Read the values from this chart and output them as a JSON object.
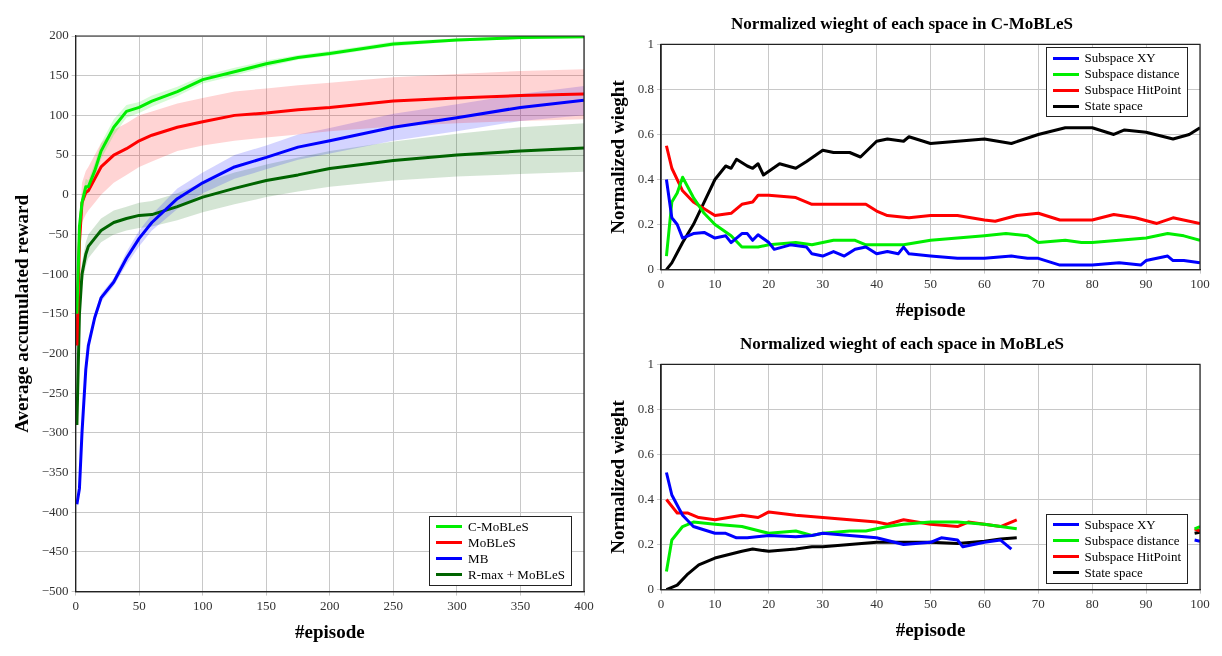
{
  "chart_data": [
    {
      "type": "line",
      "xlabel": "#episode",
      "ylabel": "Average accumulated reward",
      "xlim": [
        0,
        400
      ],
      "ylim": [
        -500,
        200
      ],
      "xticks": [
        0,
        50,
        100,
        150,
        200,
        250,
        300,
        350,
        400
      ],
      "yticks": [
        -500,
        -450,
        -400,
        -350,
        -300,
        -250,
        -200,
        -150,
        -100,
        -50,
        0,
        50,
        100,
        150,
        200
      ],
      "grid": true,
      "legend": "bottom right",
      "marker": "none",
      "line_style": "solid",
      "x": [
        1,
        3,
        5,
        8,
        10,
        15,
        20,
        30,
        40,
        50,
        60,
        80,
        100,
        125,
        150,
        175,
        200,
        250,
        300,
        350,
        400
      ],
      "series": [
        {
          "name": "C-MoBLeS",
          "color": "#00ee00",
          "values": [
            -150,
            -40,
            -10,
            10,
            10,
            30,
            55,
            85,
            105,
            110,
            118,
            130,
            145,
            155,
            165,
            173,
            178,
            190,
            195,
            198,
            199
          ],
          "lower": [
            -165,
            -55,
            -20,
            0,
            2,
            20,
            45,
            75,
            97,
            103,
            111,
            124,
            140,
            150,
            161,
            170,
            175,
            187,
            193,
            196,
            197
          ],
          "upper": [
            -135,
            -25,
            0,
            20,
            18,
            40,
            65,
            95,
            113,
            117,
            125,
            136,
            150,
            160,
            169,
            176,
            181,
            193,
            197,
            200,
            200
          ]
        },
        {
          "name": "MoBLeS",
          "color": "#ff0000",
          "values": [
            -190,
            -60,
            -10,
            3,
            5,
            20,
            35,
            50,
            58,
            68,
            75,
            85,
            92,
            100,
            103,
            107,
            110,
            118,
            122,
            125,
            127
          ],
          "lower": [
            -200,
            -80,
            -35,
            -25,
            -20,
            -10,
            0,
            15,
            25,
            35,
            42,
            55,
            62,
            68,
            72,
            76,
            80,
            86,
            90,
            93,
            95
          ],
          "upper": [
            -180,
            -40,
            15,
            30,
            35,
            50,
            65,
            82,
            90,
            100,
            105,
            115,
            122,
            130,
            134,
            138,
            141,
            148,
            152,
            156,
            158
          ]
        },
        {
          "name": "MB",
          "color": "#0000ff",
          "values": [
            -390,
            -370,
            -300,
            -220,
            -190,
            -155,
            -130,
            -110,
            -80,
            -55,
            -35,
            -5,
            15,
            35,
            47,
            60,
            68,
            85,
            97,
            110,
            119
          ],
          "lower": [
            -395,
            -375,
            -305,
            -225,
            -195,
            -160,
            -135,
            -115,
            -88,
            -65,
            -45,
            -18,
            2,
            20,
            32,
            44,
            52,
            68,
            80,
            93,
            100
          ],
          "upper": [
            -385,
            -365,
            -295,
            -215,
            -185,
            -150,
            -125,
            -105,
            -72,
            -45,
            -25,
            8,
            28,
            50,
            62,
            76,
            84,
            102,
            114,
            127,
            137
          ]
        },
        {
          "name": "R-max + MoBLeS",
          "color": "#006400",
          "values": [
            -290,
            -150,
            -100,
            -75,
            -65,
            -55,
            -45,
            -35,
            -30,
            -26,
            -25,
            -15,
            -3,
            8,
            18,
            25,
            33,
            43,
            50,
            55,
            59
          ],
          "lower": [
            -300,
            -165,
            -115,
            -90,
            -80,
            -70,
            -60,
            -50,
            -45,
            -42,
            -40,
            -32,
            -22,
            -12,
            -3,
            4,
            10,
            18,
            23,
            26,
            29
          ],
          "upper": [
            -280,
            -135,
            -85,
            -60,
            -50,
            -40,
            -30,
            -20,
            -15,
            -10,
            -8,
            2,
            15,
            28,
            38,
            47,
            55,
            67,
            77,
            85,
            90
          ]
        }
      ]
    },
    {
      "type": "line",
      "title": "Normalized wieght of each space in C-MoBLeS",
      "xlabel": "#episode",
      "ylabel": "Normalized wieght",
      "xlim": [
        0,
        100
      ],
      "ylim": [
        0,
        1
      ],
      "xticks": [
        0,
        10,
        20,
        30,
        40,
        50,
        60,
        70,
        80,
        90,
        100
      ],
      "yticks": [
        0,
        0.2,
        0.4,
        0.6,
        0.8,
        1
      ],
      "grid": true,
      "legend": "top right",
      "marker": "none",
      "line_style": "solid",
      "series": [
        {
          "name": "Subspace XY",
          "color": "#0000ff",
          "x": [
            1,
            2,
            3,
            4,
            6,
            8,
            10,
            12,
            13,
            15,
            16,
            17,
            18,
            20,
            21,
            24,
            27,
            28,
            30,
            32,
            34,
            36,
            38,
            40,
            42,
            44,
            45,
            46,
            50,
            55,
            60,
            65,
            68,
            70,
            74,
            80,
            85,
            89,
            90,
            94,
            95,
            97,
            100
          ],
          "values": [
            0.4,
            0.23,
            0.2,
            0.14,
            0.16,
            0.165,
            0.14,
            0.15,
            0.12,
            0.16,
            0.16,
            0.13,
            0.155,
            0.12,
            0.09,
            0.11,
            0.1,
            0.07,
            0.06,
            0.08,
            0.06,
            0.09,
            0.1,
            0.07,
            0.08,
            0.07,
            0.1,
            0.07,
            0.06,
            0.05,
            0.05,
            0.06,
            0.05,
            0.05,
            0.02,
            0.02,
            0.03,
            0.02,
            0.04,
            0.06,
            0.04,
            0.04,
            0.03
          ]
        },
        {
          "name": "Subspace distance",
          "color": "#00ee00",
          "x": [
            1,
            2,
            3,
            4,
            6,
            8,
            10,
            13,
            15,
            18,
            20,
            25,
            28,
            32,
            36,
            38,
            40,
            45,
            50,
            55,
            60,
            64,
            68,
            70,
            75,
            78,
            80,
            85,
            90,
            94,
            97,
            100
          ],
          "values": [
            0.06,
            0.3,
            0.34,
            0.41,
            0.32,
            0.25,
            0.2,
            0.15,
            0.1,
            0.1,
            0.11,
            0.12,
            0.11,
            0.13,
            0.13,
            0.11,
            0.11,
            0.11,
            0.13,
            0.14,
            0.15,
            0.16,
            0.15,
            0.12,
            0.13,
            0.12,
            0.12,
            0.13,
            0.14,
            0.16,
            0.15,
            0.13
          ]
        },
        {
          "name": "Subspace HitPoint",
          "color": "#ff0000",
          "x": [
            1,
            2,
            4,
            6,
            8,
            10,
            13,
            15,
            17,
            18,
            20,
            25,
            28,
            32,
            36,
            38,
            40,
            42,
            46,
            50,
            55,
            60,
            62,
            66,
            70,
            74,
            80,
            84,
            88,
            92,
            95,
            100
          ],
          "values": [
            0.55,
            0.45,
            0.35,
            0.3,
            0.27,
            0.24,
            0.25,
            0.29,
            0.3,
            0.33,
            0.33,
            0.32,
            0.29,
            0.29,
            0.29,
            0.29,
            0.26,
            0.24,
            0.23,
            0.24,
            0.24,
            0.22,
            0.215,
            0.24,
            0.25,
            0.22,
            0.22,
            0.245,
            0.23,
            0.205,
            0.23,
            0.205
          ]
        },
        {
          "name": "State space",
          "color": "#000000",
          "x": [
            1,
            2,
            4,
            6,
            8,
            10,
            12,
            13,
            14,
            16,
            17,
            18,
            19,
            22,
            25,
            27,
            30,
            32,
            35,
            37,
            40,
            42,
            45,
            46,
            50,
            55,
            60,
            65,
            70,
            75,
            80,
            84,
            86,
            90,
            95,
            98,
            100
          ],
          "values": [
            0,
            0.03,
            0.12,
            0.2,
            0.3,
            0.4,
            0.46,
            0.45,
            0.49,
            0.46,
            0.45,
            0.47,
            0.42,
            0.47,
            0.45,
            0.48,
            0.53,
            0.52,
            0.52,
            0.5,
            0.57,
            0.58,
            0.57,
            0.59,
            0.56,
            0.57,
            0.58,
            0.56,
            0.6,
            0.63,
            0.63,
            0.6,
            0.62,
            0.61,
            0.58,
            0.6,
            0.63
          ]
        }
      ]
    },
    {
      "type": "line",
      "title": "Normalized wieght of each space in MoBLeS",
      "xlabel": "#episode",
      "ylabel": "Normalized wieght",
      "xlim": [
        0,
        100
      ],
      "ylim": [
        0,
        1
      ],
      "xticks": [
        0,
        10,
        20,
        30,
        40,
        50,
        60,
        70,
        80,
        90,
        100
      ],
      "yticks": [
        0,
        0.2,
        0.4,
        0.6,
        0.8,
        1
      ],
      "grid": true,
      "legend": "bottom right",
      "marker": "none",
      "line_style": "solid",
      "series": [
        {
          "name": "Subspace XY",
          "color": "#0000ff",
          "x": [
            1,
            2,
            4,
            6,
            10,
            12,
            14,
            16,
            20,
            25,
            28,
            30,
            35,
            40,
            45,
            50,
            52,
            55,
            56,
            60,
            63,
            65,
            80,
            99,
            100
          ],
          "values": [
            0.52,
            0.42,
            0.33,
            0.28,
            0.25,
            0.25,
            0.23,
            0.23,
            0.24,
            0.235,
            0.24,
            0.25,
            0.24,
            0.23,
            0.2,
            0.21,
            0.23,
            0.22,
            0.19,
            0.21,
            0.22,
            0.18,
            null,
            0.22,
            0.215
          ]
        },
        {
          "name": "Subspace distance",
          "color": "#00ee00",
          "x": [
            1,
            2,
            4,
            6,
            10,
            15,
            20,
            25,
            28,
            30,
            35,
            38,
            40,
            42,
            45,
            50,
            55,
            60,
            63,
            66,
            80,
            99,
            100
          ],
          "values": [
            0.08,
            0.22,
            0.28,
            0.3,
            0.29,
            0.28,
            0.25,
            0.26,
            0.24,
            0.25,
            0.26,
            0.26,
            0.27,
            0.28,
            0.29,
            0.3,
            0.3,
            0.29,
            0.28,
            0.27,
            null,
            0.27,
            0.28
          ]
        },
        {
          "name": "Subspace HitPoint",
          "color": "#ff0000",
          "x": [
            1,
            3,
            5,
            7,
            10,
            15,
            18,
            20,
            25,
            30,
            35,
            40,
            42,
            45,
            50,
            55,
            57,
            60,
            63,
            66,
            80,
            99,
            100
          ],
          "values": [
            0.4,
            0.34,
            0.34,
            0.32,
            0.31,
            0.33,
            0.32,
            0.345,
            0.33,
            0.32,
            0.31,
            0.3,
            0.29,
            0.31,
            0.29,
            0.28,
            0.3,
            0.29,
            0.28,
            0.31,
            null,
            0.27,
            0.26
          ]
        },
        {
          "name": "State space",
          "color": "#000000",
          "x": [
            1,
            3,
            5,
            7,
            10,
            15,
            17,
            20,
            25,
            28,
            30,
            35,
            40,
            45,
            50,
            55,
            60,
            63,
            66,
            80,
            99,
            100
          ],
          "values": [
            0,
            0.02,
            0.07,
            0.11,
            0.14,
            0.17,
            0.18,
            0.17,
            0.18,
            0.19,
            0.19,
            0.2,
            0.21,
            0.21,
            0.21,
            0.205,
            0.215,
            0.225,
            0.23,
            null,
            0.25,
            0.255
          ]
        }
      ]
    }
  ]
}
